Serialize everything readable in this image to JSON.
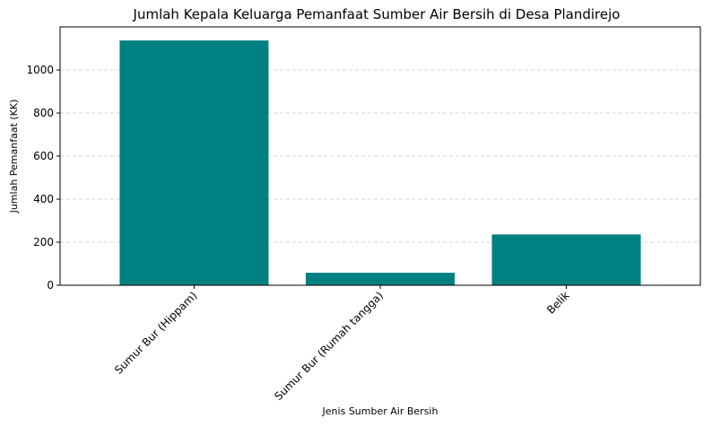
{
  "chart_data": {
    "type": "bar",
    "title": "Jumlah Kepala Keluarga Pemanfaat Sumber Air Bersih di Desa Plandirejo",
    "xlabel": "Jenis Sumber Air Bersih",
    "ylabel": "Jumlah Pemanfaat (KK)",
    "categories": [
      "Sumur Bur (Hippam)",
      "Sumur Bur (Rumah tangga)",
      "Belik"
    ],
    "values": [
      1137,
      58,
      236
    ],
    "ylim": [
      0,
      1200
    ],
    "yticks": [
      0,
      200,
      400,
      600,
      800,
      1000
    ],
    "grid": "y-dashed",
    "bar_color": "#008080"
  }
}
